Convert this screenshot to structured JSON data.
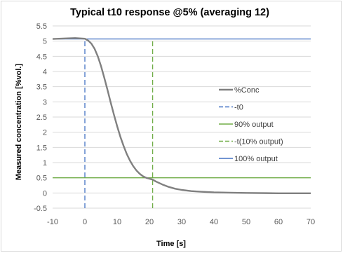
{
  "chart_data": {
    "type": "line",
    "title": "Typical t10 response @5% (averaging 12)",
    "xlabel": "Time [s]",
    "ylabel": "Measured concentration [%vol.]",
    "xlim": [
      -10,
      70
    ],
    "ylim": [
      -0.5,
      5.5
    ],
    "x_ticks": [
      -10,
      0,
      10,
      20,
      30,
      40,
      50,
      60,
      70
    ],
    "y_ticks": [
      -0.5,
      0,
      0.5,
      1,
      1.5,
      2,
      2.5,
      3,
      3.5,
      4,
      4.5,
      5,
      5.5
    ],
    "y_tick_labels": [
      "-0.5",
      "0",
      "0.5",
      "1",
      "1.5",
      "2",
      "2.5",
      "3",
      "3.5",
      "4",
      "4.5",
      "5",
      "5.5"
    ],
    "grid": "horizontal",
    "legend_position": "right",
    "series": [
      {
        "name": "%Conc",
        "style": "solid",
        "color": "#808080",
        "x": [
          -10,
          -6,
          -3,
          0,
          1,
          2,
          3,
          4,
          5,
          6,
          7,
          8,
          9,
          10,
          11,
          12,
          13,
          14,
          15,
          16,
          17,
          18,
          19,
          20,
          21,
          22,
          24,
          26,
          28,
          30,
          33,
          36,
          40,
          45,
          50,
          60,
          70
        ],
        "y": [
          5.07,
          5.09,
          5.1,
          5.08,
          5.02,
          4.92,
          4.75,
          4.5,
          4.18,
          3.8,
          3.4,
          2.98,
          2.58,
          2.2,
          1.85,
          1.55,
          1.28,
          1.06,
          0.88,
          0.74,
          0.63,
          0.55,
          0.5,
          0.47,
          0.44,
          0.38,
          0.28,
          0.2,
          0.14,
          0.1,
          0.06,
          0.04,
          0.02,
          0.01,
          0.0,
          -0.01,
          -0.01
        ]
      },
      {
        "name": "-t0",
        "style": "dashed",
        "color": "#4472C4",
        "x": [
          0,
          0
        ],
        "y": [
          -0.5,
          5.07
        ]
      },
      {
        "name": "90% output",
        "style": "solid",
        "color": "#70AD47",
        "x": [
          -10,
          70
        ],
        "y": [
          0.5,
          0.5
        ]
      },
      {
        "name": "-t(10% output)",
        "style": "dashed",
        "color": "#70AD47",
        "x": [
          21,
          21
        ],
        "y": [
          -0.5,
          5.07
        ]
      },
      {
        "name": "100% output",
        "style": "solid",
        "color": "#4472C4",
        "x": [
          -10,
          70
        ],
        "y": [
          5.07,
          5.07
        ]
      }
    ]
  }
}
